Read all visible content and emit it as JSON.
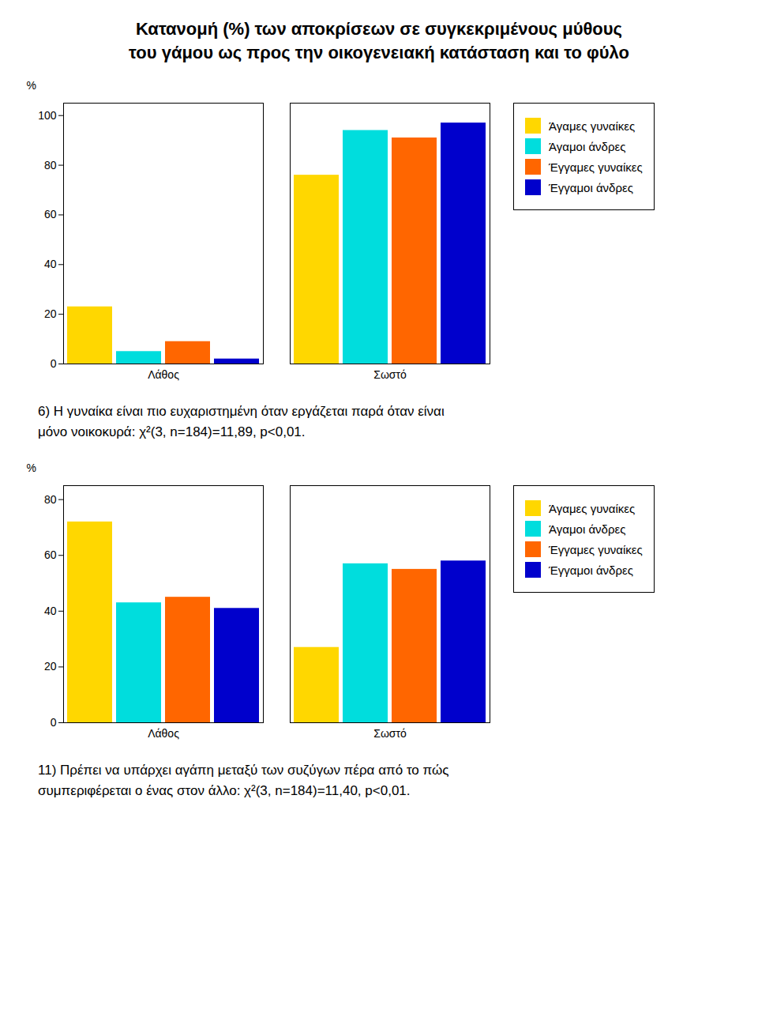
{
  "chart_data": [
    {
      "type": "bar",
      "title": "Κατανομή (%) των αποκρίσεων σε συγκεκριμένους μύθους",
      "subtitle": "του γάμου ως προς την οικογενειακή κατάσταση και το φύλο",
      "categories": [
        "Λάθος",
        "Σωστό"
      ],
      "series": [
        {
          "name": "Άγαμες γυναίκες",
          "color": "#FFD700",
          "values": [
            23,
            76
          ]
        },
        {
          "name": "Άγαμοι άνδρες",
          "color": "#00DDDD",
          "values": [
            5,
            94
          ]
        },
        {
          "name": "Έγγαμες γυναίκες",
          "color": "#FF6600",
          "values": [
            9,
            91
          ]
        },
        {
          "name": "Έγγαμοι άνδρες",
          "color": "#0000CC",
          "values": [
            2,
            97
          ]
        }
      ],
      "ylim": [
        0,
        105
      ],
      "yticks": [
        0,
        20,
        40,
        60,
        80,
        100
      ],
      "ylabel": "%",
      "legend": "right",
      "grid": false,
      "annotations": [
        "6) Η γυναίκα είναι πιο ευχαριστημένη όταν εργάζεται παρά όταν είναι",
        "μόνο νοικοκυρά: χ²(3, n=184)=11,89, p<0,01."
      ]
    },
    {
      "type": "bar",
      "categories": [
        "Λάθος",
        "Σωστό"
      ],
      "series": [
        {
          "name": "Άγαμες γυναίκες",
          "color": "#FFD700",
          "values": [
            72,
            27
          ]
        },
        {
          "name": "Άγαμοι άνδρες",
          "color": "#00DDDD",
          "values": [
            43,
            57
          ]
        },
        {
          "name": "Έγγαμες γυναίκες",
          "color": "#FF6600",
          "values": [
            45,
            55
          ]
        },
        {
          "name": "Έγγαμοι άνδρες",
          "color": "#0000CC",
          "values": [
            41,
            58
          ]
        }
      ],
      "ylim": [
        0,
        85
      ],
      "yticks": [
        0,
        20,
        40,
        60,
        80
      ],
      "ylabel": "%",
      "legend": "right",
      "grid": false,
      "annotations": [
        "11) Πρέπει να υπάρχει αγάπη μεταξύ των συζύγων πέρα από το πώς",
        "συμπεριφέρεται ο ένας στον άλλο: χ²(3, n=184)=11,40, p<0,01."
      ]
    }
  ]
}
